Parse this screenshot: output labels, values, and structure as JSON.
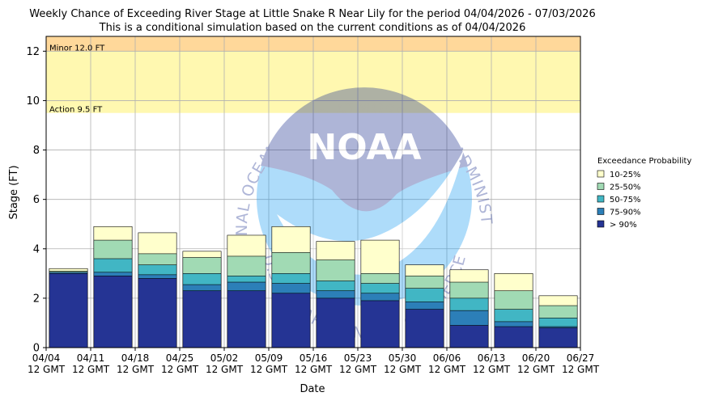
{
  "chart_data": {
    "type": "bar",
    "title": "Weekly Chance of Exceeding River Stage at Little Snake R Near Lily for the period 04/04/2026 - 07/03/2026",
    "subtitle": "This is a conditional simulation based on the current conditions as of 04/04/2026",
    "xlabel": "Date",
    "ylabel": "Stage (FT)",
    "ylim": [
      0,
      12.6
    ],
    "yticks": [
      0,
      2,
      4,
      6,
      8,
      10,
      12
    ],
    "xtick_labels": [
      [
        "04/04",
        "12 GMT"
      ],
      [
        "04/11",
        "12 GMT"
      ],
      [
        "04/18",
        "12 GMT"
      ],
      [
        "04/25",
        "12 GMT"
      ],
      [
        "05/02",
        "12 GMT"
      ],
      [
        "05/09",
        "12 GMT"
      ],
      [
        "05/16",
        "12 GMT"
      ],
      [
        "05/23",
        "12 GMT"
      ],
      [
        "05/30",
        "12 GMT"
      ],
      [
        "06/06",
        "12 GMT"
      ],
      [
        "06/13",
        "12 GMT"
      ],
      [
        "06/20",
        "12 GMT"
      ],
      [
        "06/27",
        "12 GMT"
      ]
    ],
    "grid": true,
    "thresholds": [
      {
        "label": "Minor 12.0 FT",
        "value": 12.0,
        "color": "#ffd89a"
      },
      {
        "label": "Action 9.5 FT",
        "value": 9.5,
        "color": "#fff8b0"
      }
    ],
    "legend": {
      "title": "Exceedance Probability",
      "placement": "right",
      "entries": [
        {
          "label": "10-25%",
          "color": "#ffffcc"
        },
        {
          "label": "25-50%",
          "color": "#a1dab4"
        },
        {
          "label": "50-75%",
          "color": "#41b6c4"
        },
        {
          "label": "75-90%",
          "color": "#2c7fb8"
        },
        {
          "label": "> 90%",
          "color": "#253494"
        }
      ]
    },
    "categories": [
      "04/04",
      "04/11",
      "04/18",
      "04/25",
      "05/02",
      "05/09",
      "05/16",
      "05/23",
      "05/30",
      "06/06",
      "06/13",
      "06/20"
    ],
    "series": [
      {
        "name": "> 90%",
        "color": "#253494",
        "values": [
          3.0,
          2.9,
          2.8,
          2.3,
          2.3,
          2.2,
          2.0,
          1.9,
          1.55,
          0.9,
          0.85,
          0.8
        ]
      },
      {
        "name": "75-90%",
        "color": "#2c7fb8",
        "values": [
          3.05,
          3.05,
          2.95,
          2.55,
          2.65,
          2.6,
          2.3,
          2.2,
          1.85,
          1.5,
          1.05,
          0.85
        ]
      },
      {
        "name": "50-75%",
        "color": "#41b6c4",
        "values": [
          3.05,
          3.6,
          3.35,
          3.0,
          2.9,
          3.0,
          2.7,
          2.6,
          2.4,
          2.0,
          1.55,
          1.2
        ]
      },
      {
        "name": "25-50%",
        "color": "#a1dab4",
        "values": [
          3.1,
          4.35,
          3.8,
          3.65,
          3.7,
          3.85,
          3.55,
          3.0,
          2.9,
          2.65,
          2.3,
          1.7
        ]
      },
      {
        "name": "10-25%",
        "color": "#ffffcc",
        "values": [
          3.2,
          4.9,
          4.65,
          3.9,
          4.55,
          4.9,
          4.3,
          4.35,
          3.35,
          3.15,
          3.0,
          2.1
        ]
      }
    ]
  },
  "watermark": {
    "arc_text_top": "NATIONAL OCEANIC AND ATMOSPHERIC ADMINISTRATION",
    "arc_text_bottom": "U.S. DEPARTMENT OF COMMERCE",
    "logo_text": "NOAA"
  }
}
